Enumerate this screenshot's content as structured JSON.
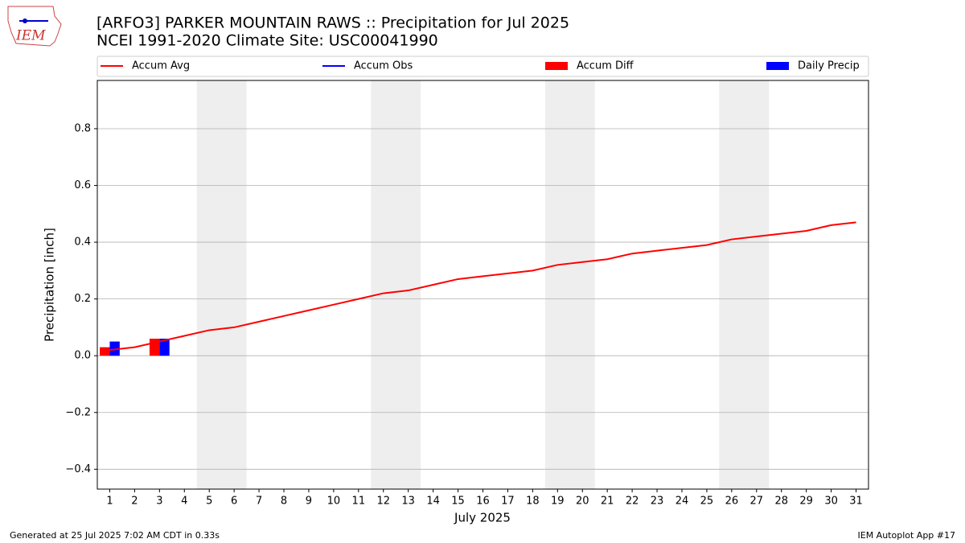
{
  "chart_data": {
    "type": "line",
    "title": "[ARFO3] PARKER MOUNTAIN RAWS :: Precipitation for Jul 2025",
    "subtitle": "NCEI 1991-2020 Climate Site: USC00041990",
    "logo_text": "IEM",
    "x_label": "July 2025",
    "y_label": "Precipitation [inch]",
    "footer_left": "Generated at 25 Jul 2025 7:02 AM CDT in 0.33s",
    "footer_right": "IEM Autoplot App #17",
    "x": [
      1,
      2,
      3,
      4,
      5,
      6,
      7,
      8,
      9,
      10,
      11,
      12,
      13,
      14,
      15,
      16,
      17,
      18,
      19,
      20,
      21,
      22,
      23,
      24,
      25,
      26,
      27,
      28,
      29,
      30,
      31
    ],
    "xlim": [
      0.5,
      31.5
    ],
    "xticks": [
      1,
      2,
      3,
      4,
      5,
      6,
      7,
      8,
      9,
      10,
      11,
      12,
      13,
      14,
      15,
      16,
      17,
      18,
      19,
      20,
      21,
      22,
      23,
      24,
      25,
      26,
      27,
      28,
      29,
      30,
      31
    ],
    "ylim": [
      -0.47,
      0.97
    ],
    "yticks": [
      {
        "value": -0.4,
        "label": "−0.4"
      },
      {
        "value": -0.2,
        "label": "−0.2"
      },
      {
        "value": 0,
        "label": "0.0"
      },
      0.2,
      0.4,
      0.6,
      0.8
    ],
    "grid": true,
    "weekend_spans": [
      [
        4.5,
        6.5
      ],
      [
        11.5,
        13.5
      ],
      [
        18.5,
        20.5
      ],
      [
        25.5,
        27.5
      ]
    ],
    "series": [
      {
        "name": "Accum Avg",
        "color": "#ff0000",
        "kind": "line",
        "values": [
          0.02,
          0.03,
          0.05,
          0.07,
          0.09,
          0.1,
          0.12,
          0.14,
          0.16,
          0.18,
          0.2,
          0.22,
          0.23,
          0.25,
          0.27,
          0.28,
          0.29,
          0.3,
          0.32,
          0.33,
          0.34,
          0.36,
          0.37,
          0.38,
          0.39,
          0.41,
          0.42,
          0.43,
          0.44,
          0.46,
          0.47
        ]
      },
      {
        "name": "Accum Obs",
        "color": "#0000ff",
        "kind": "line",
        "values": [
          null,
          null,
          null,
          null,
          null,
          null,
          null,
          null,
          null,
          null,
          null,
          null,
          null,
          null,
          null,
          null,
          null,
          null,
          null,
          null,
          null,
          null,
          null,
          null,
          null,
          null,
          null,
          null,
          null,
          null,
          null
        ]
      },
      {
        "name": "Accum Diff",
        "color": "#ff0000",
        "kind": "bar",
        "offset": -1,
        "values": [
          0.03,
          null,
          0.06,
          null,
          null,
          null,
          null,
          null,
          null,
          null,
          null,
          null,
          null,
          null,
          null,
          null,
          null,
          null,
          null,
          null,
          null,
          null,
          null,
          null,
          null,
          null,
          null,
          null,
          null,
          null,
          null
        ]
      },
      {
        "name": "Daily Precip",
        "color": "#0000ff",
        "kind": "bar",
        "offset": 0,
        "values": [
          0.05,
          null,
          0.06,
          null,
          null,
          null,
          null,
          null,
          null,
          null,
          null,
          null,
          null,
          null,
          null,
          null,
          null,
          null,
          null,
          null,
          null,
          null,
          null,
          null,
          null,
          null,
          null,
          null,
          null,
          null,
          null
        ]
      }
    ]
  }
}
